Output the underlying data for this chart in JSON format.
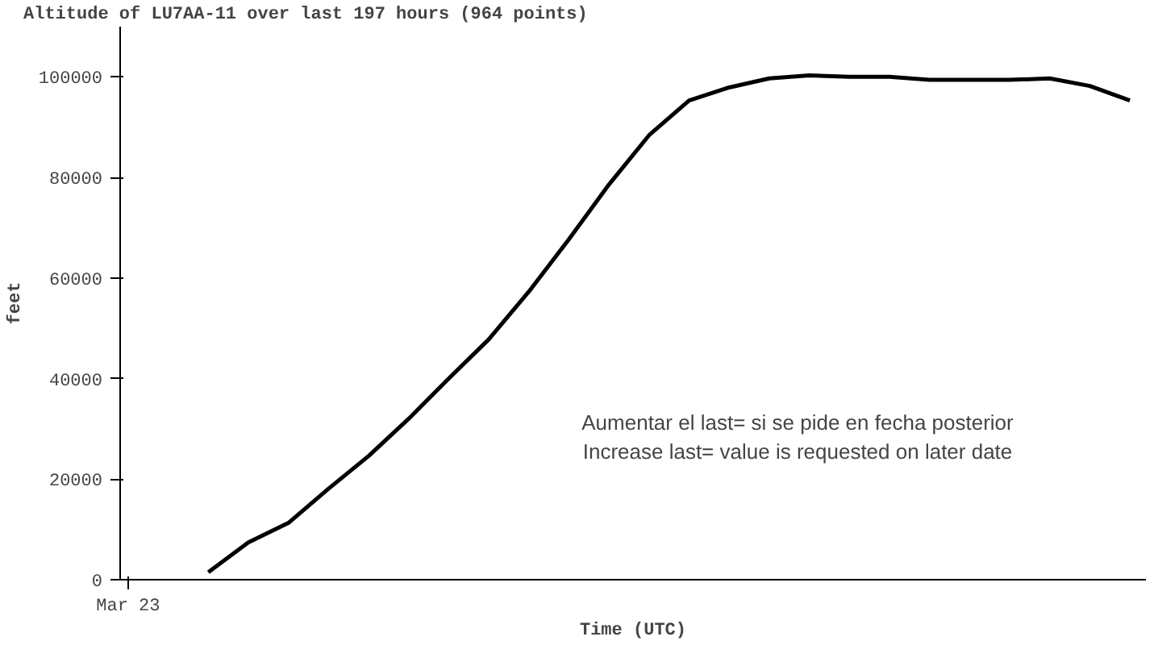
{
  "chart_data": {
    "type": "line",
    "title": "Altitude of LU7AA-11 over last 197 hours (964 points)",
    "xlabel": "Time (UTC)",
    "ylabel": "feet",
    "categories": [
      "Mar 23",
      null,
      null,
      null,
      null,
      null,
      null,
      null,
      null,
      null,
      null,
      null,
      null,
      null,
      null,
      null,
      null,
      null,
      null,
      null,
      null,
      null,
      null,
      null,
      null,
      null
    ],
    "series": [
      {
        "color": "#000000",
        "values": [
          null,
          null,
          1500,
          7400,
          11300,
          18100,
          24600,
          32000,
          40000,
          47800,
          57300,
          67700,
          78600,
          88400,
          95300,
          97900,
          99700,
          100300,
          100000,
          100000,
          99400,
          99400,
          99400,
          99700,
          98200,
          95300
        ]
      }
    ],
    "ylim": [
      0,
      110000
    ],
    "yticks": [
      0,
      20000,
      40000,
      60000,
      80000,
      100000
    ],
    "grid": false,
    "marker": "none",
    "line_style": "solid",
    "annotations": [
      "Aumentar el last= si se pide en fecha posterior",
      "Increase last= value is requested on later date"
    ]
  }
}
